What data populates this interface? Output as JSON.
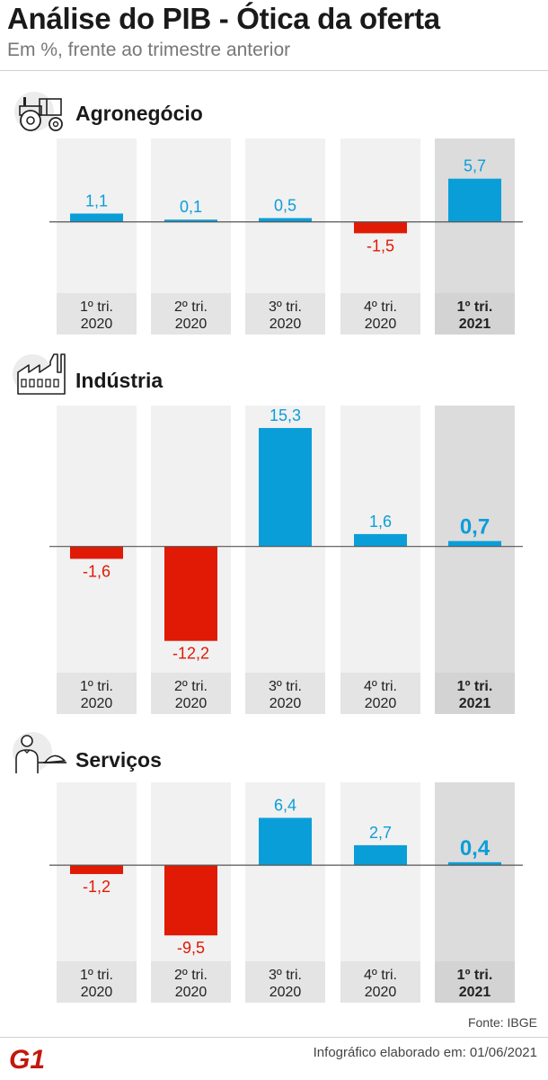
{
  "header": {
    "title": "Análise do PIB - Ótica da oferta",
    "subtitle": "Em %, frente ao trimestre anterior"
  },
  "icons": [
    "tractor-icon",
    "factory-icon",
    "waiter-icon"
  ],
  "colors": {
    "positive": "#0a9ed9",
    "negative": "#e01a05",
    "panel": "#f1f1f1",
    "panel_highlight": "#dcdcdc",
    "label_box": "#e4e4e4",
    "label_box_highlight": "#d3d3d3",
    "baseline": "#555555"
  },
  "chart_data": [
    {
      "type": "bar",
      "title": "Agronegócio",
      "categories": [
        "1º tri. 2020",
        "2º tri. 2020",
        "3º tri. 2020",
        "4º tri. 2020",
        "1º tri. 2021"
      ],
      "values": [
        1.1,
        0.1,
        0.5,
        -1.5,
        5.7
      ],
      "value_labels": [
        "1,1",
        "0,1",
        "0,5",
        "-1,5",
        "5,7"
      ],
      "ylim": [
        -9.4,
        11.0
      ],
      "highlight_index": 4
    },
    {
      "type": "bar",
      "title": "Indústria",
      "categories": [
        "1º tri. 2020",
        "2º tri. 2020",
        "3º tri. 2020",
        "4º tri. 2020",
        "1º tri. 2021"
      ],
      "values": [
        -1.6,
        -12.2,
        15.3,
        1.6,
        0.7
      ],
      "value_labels": [
        "-1,6",
        "-12,2",
        "15,3",
        "1,6",
        "0,7"
      ],
      "ylim": [
        -16.3,
        18.2
      ],
      "highlight_index": 4
    },
    {
      "type": "bar",
      "title": "Serviços",
      "categories": [
        "1º tri. 2020",
        "2º tri. 2020",
        "3º tri. 2020",
        "4º tri. 2020",
        "1º tri. 2021"
      ],
      "values": [
        -1.2,
        -9.5,
        6.4,
        2.7,
        0.4
      ],
      "value_labels": [
        "-1,2",
        "-9,5",
        "6,4",
        "2,7",
        "0,4"
      ],
      "ylim": [
        -13.0,
        11.2
      ],
      "highlight_index": 4
    }
  ],
  "footer": {
    "source": "Fonte: IBGE",
    "note": "Infográfico elaborado em: 01/06/2021",
    "logo": "G1"
  }
}
